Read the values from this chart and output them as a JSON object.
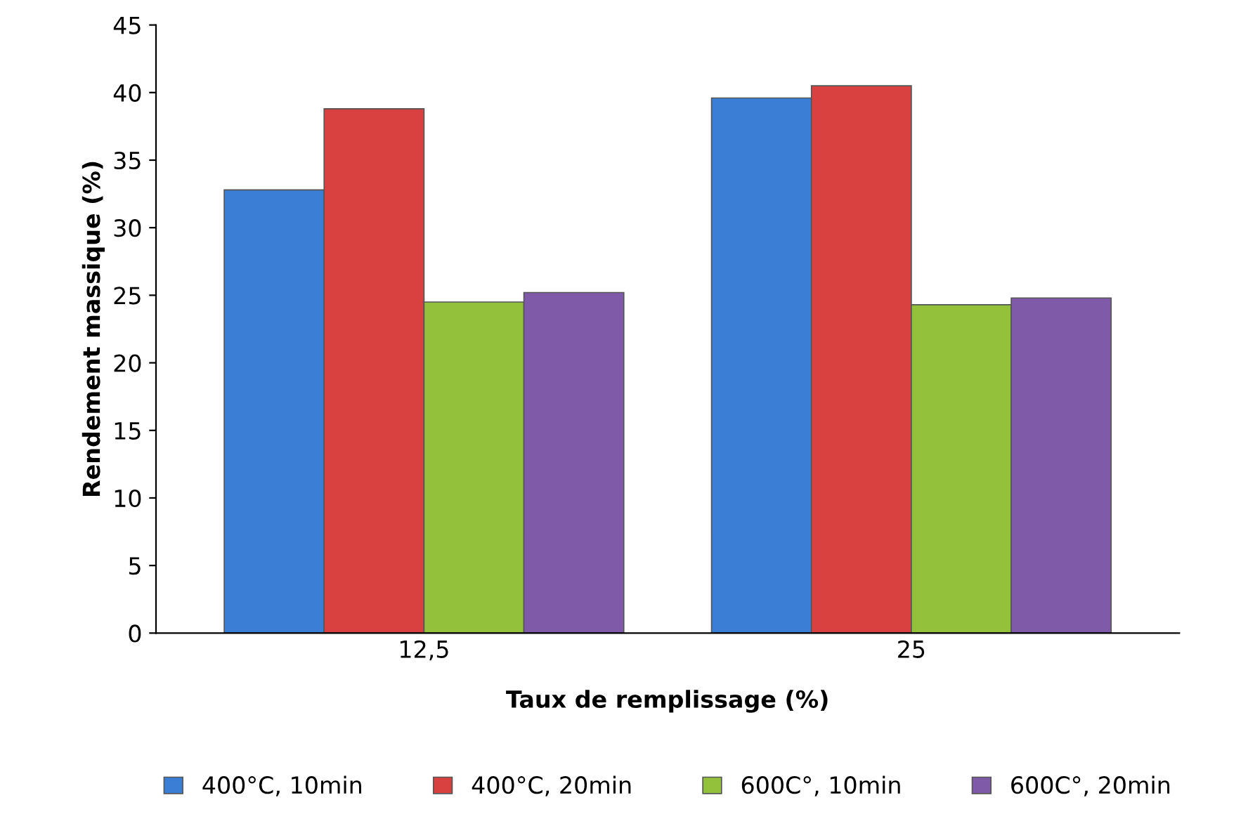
{
  "chart_data": {
    "type": "bar",
    "xlabel": "Taux de remplissage (%)",
    "ylabel": "Rendement massique (%)",
    "categories": [
      "12,5",
      "25"
    ],
    "series": [
      {
        "name": "400°C, 10min",
        "color": "#3a7fd5",
        "values": [
          32.8,
          39.6
        ]
      },
      {
        "name": "400°C, 20min",
        "color": "#d94040",
        "values": [
          38.8,
          40.5
        ]
      },
      {
        "name": "600C°, 10min",
        "color": "#93c13c",
        "values": [
          24.5,
          24.3
        ]
      },
      {
        "name": "600C°, 20min",
        "color": "#7f5aa8",
        "values": [
          25.2,
          24.8
        ]
      }
    ],
    "ylim": [
      0,
      45
    ],
    "yticks": [
      0,
      5,
      10,
      15,
      20,
      25,
      30,
      35,
      40,
      45
    ],
    "grid": false,
    "legend": "bottom"
  }
}
